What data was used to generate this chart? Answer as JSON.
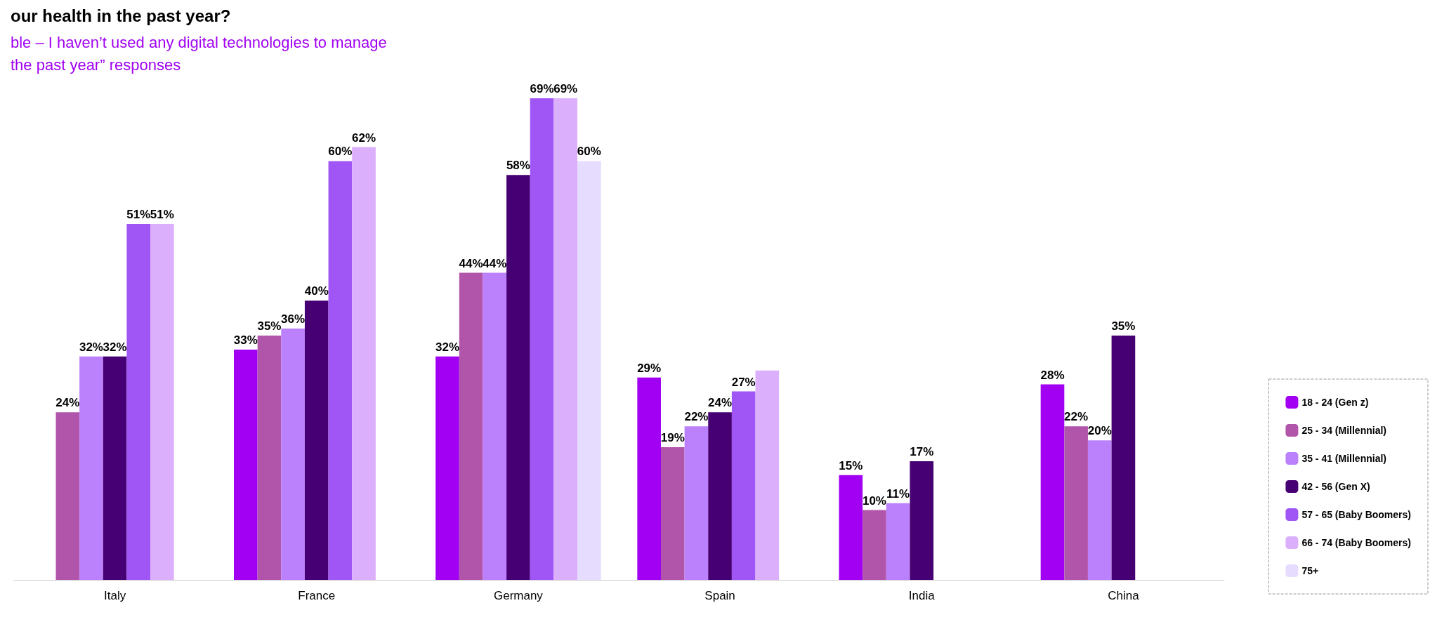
{
  "chart_data": {
    "type": "bar",
    "title": "our health in the past year?",
    "subtitle": "ble – I haven’t used any digital technologies to manage\nthe past year” responses",
    "categories": [
      "Italy",
      "France",
      "Germany",
      "Spain",
      "India",
      "China"
    ],
    "series": [
      {
        "name": "18 - 24 (Gen z)",
        "color": "#a100f2",
        "values": [
          null,
          33,
          32,
          29,
          15,
          28
        ],
        "value_labels": [
          null,
          "33%",
          "32%",
          "29%",
          "15%",
          "28%"
        ]
      },
      {
        "name": "25 - 34 (Millennial)",
        "color": "#b155ab",
        "values": [
          24,
          35,
          44,
          19,
          10,
          22
        ],
        "value_labels": [
          "24%",
          "35%",
          "44%",
          "19%",
          "10%",
          "22%"
        ]
      },
      {
        "name": "35 - 41 (Millennial)",
        "color": "#bb80fb",
        "values": [
          32,
          36,
          44,
          22,
          11,
          20
        ],
        "value_labels": [
          "32%",
          "36%",
          "44%",
          "22%",
          "11%",
          "20%"
        ]
      },
      {
        "name": "42 - 56 (Gen X)",
        "color": "#460073",
        "values": [
          32,
          40,
          58,
          24,
          17,
          35
        ],
        "value_labels": [
          "32%",
          "40%",
          "58%",
          "24%",
          "17%",
          "35%"
        ]
      },
      {
        "name": "57 - 65 (Baby Boomers)",
        "color": "#a055f5",
        "values": [
          51,
          60,
          69,
          27,
          null,
          null
        ],
        "value_labels": [
          "51%",
          "60%",
          "69%",
          "27%",
          null,
          null
        ]
      },
      {
        "name": "66 - 74 (Baby Boomers)",
        "color": "#dcaffd",
        "values": [
          51,
          62,
          69,
          30,
          null,
          null
        ],
        "value_labels": [
          "51%",
          "62%",
          "69%",
          null,
          null,
          null
        ]
      },
      {
        "name": "75+",
        "color": "#e5dcfe",
        "values": [
          null,
          null,
          60,
          null,
          null,
          null
        ],
        "value_labels": [
          null,
          null,
          "60%",
          null,
          null,
          null
        ]
      }
    ],
    "legend": "bottom right",
    "grid": false
  }
}
